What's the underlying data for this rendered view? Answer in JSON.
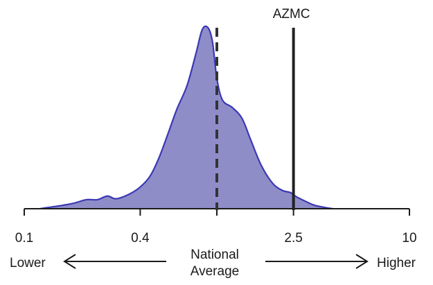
{
  "chart_data": {
    "type": "area",
    "title": "",
    "xlabel": "",
    "ylabel": "",
    "x_scale": "log",
    "xlim": [
      0.1,
      10
    ],
    "x_ticks": [
      0.1,
      0.4,
      1,
      2.5,
      10
    ],
    "x_tick_labels": [
      "0.1",
      "0.4",
      "",
      "2.5",
      "10"
    ],
    "fill_color": "#8f8dc8",
    "line_color": "#3a38b4",
    "axis_color": "#1a1a1a",
    "density": {
      "x": [
        0.12,
        0.15,
        0.18,
        0.21,
        0.24,
        0.27,
        0.3,
        0.35,
        0.4,
        0.45,
        0.5,
        0.56,
        0.62,
        0.7,
        0.78,
        0.84,
        0.9,
        0.95,
        1.0,
        1.07,
        1.2,
        1.35,
        1.5,
        1.7,
        1.95,
        2.2,
        2.4,
        2.6,
        2.9,
        3.2,
        3.6,
        4.0
      ],
      "y": [
        0.0,
        0.015,
        0.03,
        0.05,
        0.05,
        0.07,
        0.055,
        0.08,
        0.12,
        0.18,
        0.28,
        0.42,
        0.55,
        0.68,
        0.86,
        0.99,
        1.0,
        0.92,
        0.72,
        0.6,
        0.56,
        0.5,
        0.38,
        0.24,
        0.14,
        0.1,
        0.09,
        0.065,
        0.04,
        0.02,
        0.008,
        0.0
      ]
    },
    "reference_lines": [
      {
        "label": "",
        "x": 1.0,
        "style": "dashed"
      },
      {
        "label": "AZMC",
        "x": 2.5,
        "style": "solid"
      }
    ],
    "annotations": {
      "lower": "Lower",
      "higher": "Higher",
      "center_line1": "National",
      "center_line2": "Average"
    }
  }
}
